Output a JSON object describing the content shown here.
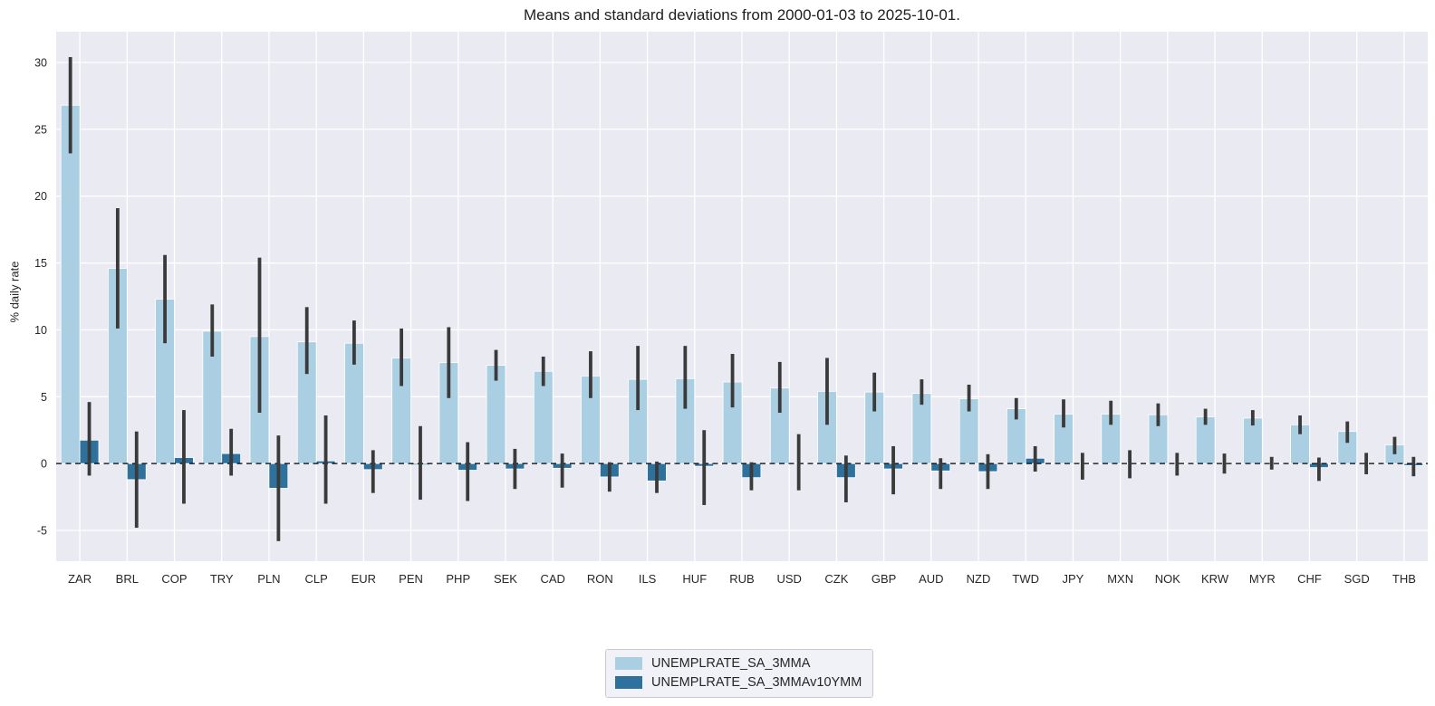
{
  "title": "Means and standard deviations from 2000-01-03 to 2025-10-01.",
  "chart_data": {
    "type": "bar",
    "title": "Means and standard deviations from 2000-01-03 to 2025-10-01.",
    "xlabel": "",
    "ylabel": "% daily rate",
    "ylim": [
      -7.3,
      32.3
    ],
    "yticks": [
      -5,
      0,
      5,
      10,
      15,
      20,
      25,
      30
    ],
    "grid": true,
    "zero_line": "dashed-black",
    "legend_position": "bottom-center",
    "plot_bg": "#eaeaf2",
    "grid_color": "#ffffff",
    "error_bar_color": "#3a3a3a",
    "text_color": "#262626",
    "categories": [
      "ZAR",
      "BRL",
      "COP",
      "TRY",
      "PLN",
      "CLP",
      "EUR",
      "PEN",
      "PHP",
      "SEK",
      "CAD",
      "RON",
      "ILS",
      "HUF",
      "RUB",
      "USD",
      "CZK",
      "GBP",
      "AUD",
      "NZD",
      "TWD",
      "JPY",
      "MXN",
      "NOK",
      "KRW",
      "MYR",
      "CHF",
      "SGD",
      "THB"
    ],
    "series": [
      {
        "name": "UNEMPLRATE_SA_3MMA",
        "color": "#aacee2",
        "values": [
          26.8,
          14.6,
          12.3,
          9.9,
          9.5,
          9.1,
          9.0,
          7.9,
          7.55,
          7.35,
          6.9,
          6.55,
          6.3,
          6.35,
          6.1,
          5.65,
          5.4,
          5.35,
          5.25,
          4.85,
          4.1,
          3.7,
          3.7,
          3.65,
          3.5,
          3.4,
          2.9,
          2.4,
          1.4
        ],
        "err_low": [
          23.2,
          10.1,
          9.0,
          8.0,
          3.8,
          6.7,
          7.4,
          5.8,
          4.9,
          6.2,
          5.8,
          4.9,
          4.0,
          4.1,
          4.2,
          3.8,
          2.9,
          3.9,
          4.4,
          3.9,
          3.3,
          2.7,
          2.9,
          2.8,
          2.9,
          2.85,
          2.2,
          1.55,
          0.7
        ],
        "err_high": [
          30.4,
          19.1,
          15.6,
          11.9,
          15.4,
          11.7,
          10.7,
          10.1,
          10.2,
          8.5,
          8.0,
          8.4,
          8.8,
          8.8,
          8.2,
          7.6,
          7.9,
          6.8,
          6.3,
          5.9,
          4.9,
          4.8,
          4.7,
          4.5,
          4.1,
          4.0,
          3.6,
          3.15,
          2.0
        ]
      },
      {
        "name": "UNEMPLRATE_SA_3MMAv10YMM",
        "color": "#2e719c",
        "values": [
          1.75,
          -1.2,
          0.45,
          0.75,
          -1.85,
          0.2,
          -0.45,
          -0.1,
          -0.5,
          -0.4,
          -0.35,
          -1.0,
          -1.3,
          -0.2,
          -1.05,
          0.0,
          -1.05,
          -0.4,
          -0.55,
          -0.6,
          0.4,
          -0.05,
          0.05,
          -0.05,
          0.0,
          0.05,
          -0.3,
          0.0,
          -0.15
        ],
        "err_low": [
          -0.9,
          -4.8,
          -3.0,
          -0.9,
          -5.8,
          -3.0,
          -2.2,
          -2.7,
          -2.8,
          -1.9,
          -1.8,
          -2.1,
          -2.2,
          -3.1,
          -2.0,
          -2.0,
          -2.9,
          -2.3,
          -1.9,
          -1.9,
          -0.6,
          -1.2,
          -1.1,
          -0.9,
          -0.75,
          -0.45,
          -1.3,
          -0.8,
          -0.95
        ],
        "err_high": [
          4.6,
          2.4,
          4.0,
          2.6,
          2.1,
          3.6,
          1.0,
          2.8,
          1.6,
          1.1,
          0.75,
          0.1,
          0.15,
          2.5,
          0.1,
          2.2,
          0.6,
          1.3,
          0.4,
          0.7,
          1.3,
          0.8,
          1.0,
          0.8,
          0.75,
          0.5,
          0.45,
          0.8,
          0.5
        ]
      }
    ]
  },
  "legend": {
    "items": [
      {
        "label": "UNEMPLRATE_SA_3MMA"
      },
      {
        "label": "UNEMPLRATE_SA_3MMAv10YMM"
      }
    ]
  }
}
